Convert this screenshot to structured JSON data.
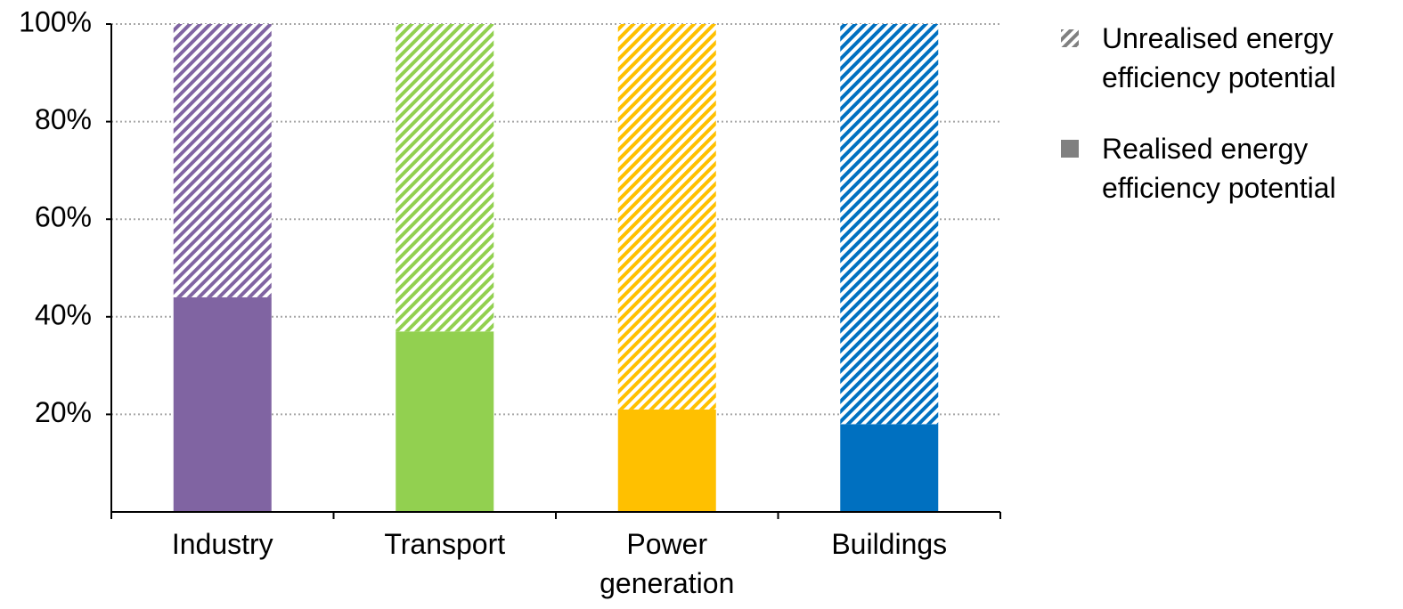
{
  "chart_data": {
    "type": "stacked_bar",
    "categories": [
      "Industry",
      "Transport",
      "Power generation",
      "Buildings"
    ],
    "category_colors": [
      "#8064a2",
      "#92d050",
      "#ffc000",
      "#0070c0"
    ],
    "series": [
      {
        "name": "Realised energy efficiency potential",
        "color": "#808080",
        "pattern": "solid",
        "values": [
          44,
          37,
          21,
          18
        ]
      },
      {
        "name": "Unrealised energy efficiency potential",
        "color": "#808080",
        "pattern": "hatched",
        "values": [
          56,
          63,
          79,
          82
        ]
      }
    ],
    "ylim": [
      0,
      100
    ],
    "yticks": [
      {
        "value": 20,
        "label": "20%"
      },
      {
        "value": 40,
        "label": "40%"
      },
      {
        "value": 60,
        "label": "60%"
      },
      {
        "value": 80,
        "label": "80%"
      },
      {
        "value": 100,
        "label": "100%"
      }
    ],
    "grid": true,
    "legend": "right"
  }
}
